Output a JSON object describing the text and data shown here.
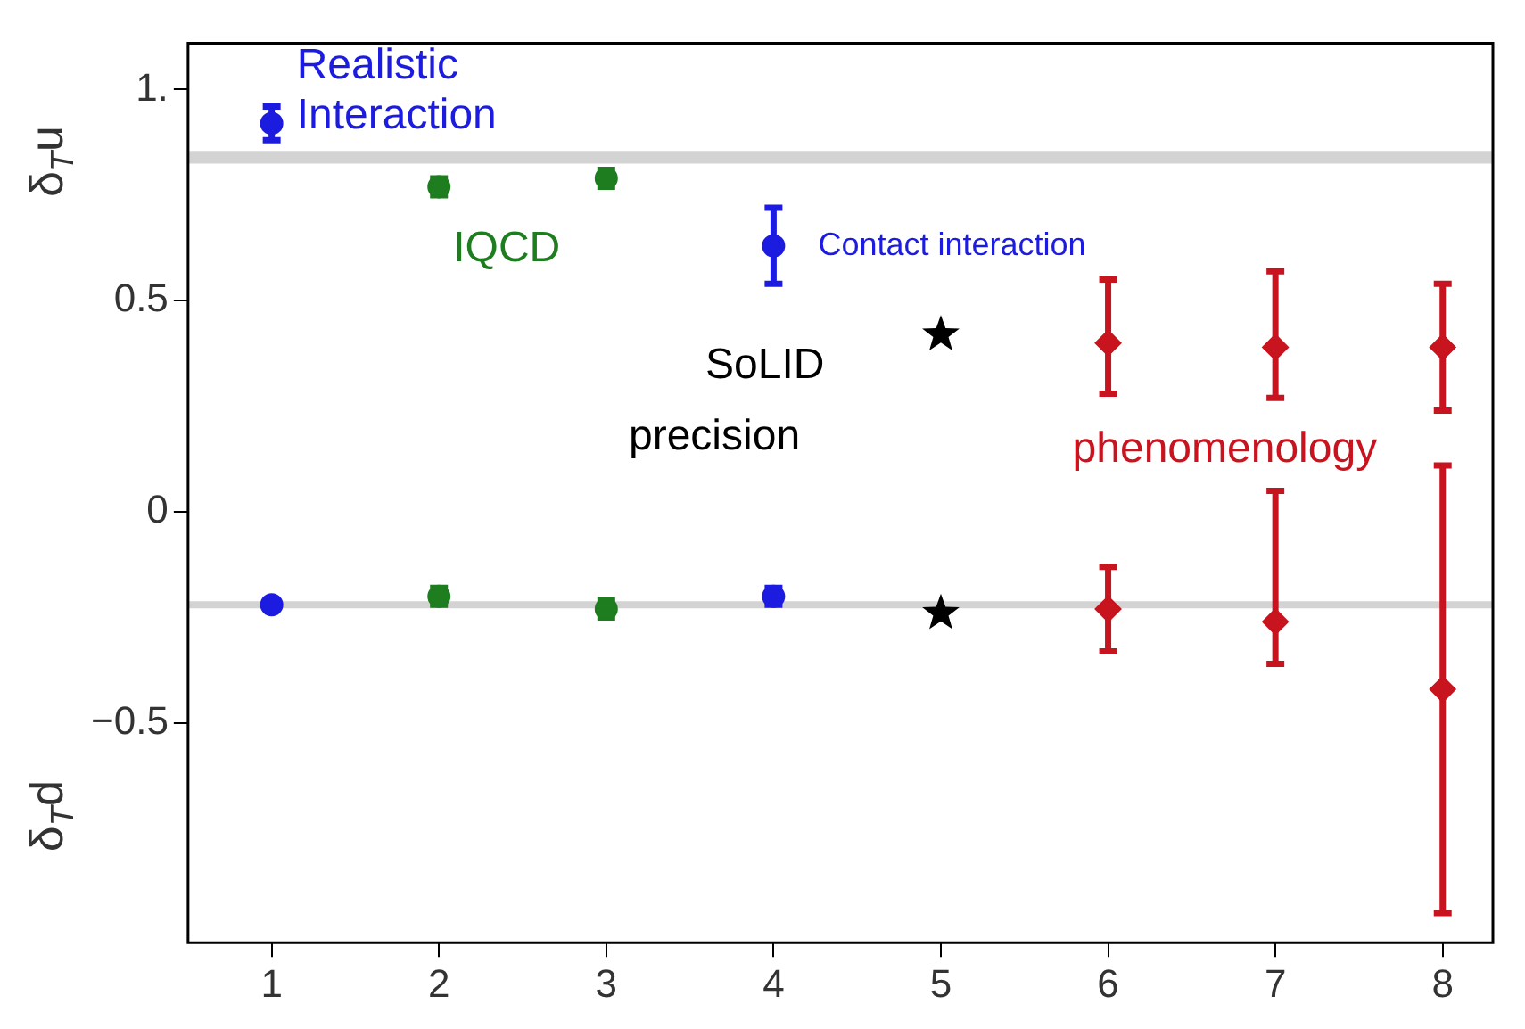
{
  "chart_data": {
    "type": "scatter",
    "ylabel": "δ$_{T}$u",
    "annotations": [
      "δ$_{T}$d"
    ],
    "xlim": [
      0.5,
      8.3
    ],
    "xticks": [
      1,
      2,
      3,
      4,
      5,
      6,
      7,
      8
    ],
    "ylim": [
      -1.02,
      1.11
    ],
    "yticks": [
      {
        "value": -0.5,
        "label": "−0.5"
      },
      0,
      0.5,
      {
        "value": 1,
        "label": "1."
      }
    ],
    "grid": false,
    "legend": false,
    "bands": [
      {
        "axis": "y",
        "from": 0.825,
        "to": 0.855,
        "color": "#d3d3d3"
      }
    ],
    "ref_lines": [
      {
        "axis": "y",
        "value": -0.22,
        "color": "#d3d3d3"
      }
    ],
    "series": [
      {
        "name": "Realistic Interaction",
        "color": "#1c1ce0",
        "marker": "circle",
        "x": [
          1,
          1
        ],
        "values": [
          0.92,
          -0.22
        ],
        "errors": [
          [
            0.88,
            0.96
          ],
          null
        ]
      },
      {
        "name": "IQCD",
        "color": "#1e7d1e",
        "marker": "circle",
        "x": [
          2,
          2,
          3,
          3
        ],
        "values": [
          0.77,
          -0.2,
          0.79,
          -0.23
        ],
        "errors": [
          0.02,
          0.02,
          0.02,
          0.02
        ]
      },
      {
        "name": "Contact interaction",
        "color": "#1c1ce0",
        "marker": "circle",
        "x": [
          4,
          4
        ],
        "values": [
          0.63,
          -0.2
        ],
        "errors": [
          [
            0.54,
            0.72
          ],
          0.02
        ]
      },
      {
        "name": "SoLID precision",
        "color": "#000000",
        "marker": "star",
        "x": [
          5,
          5
        ],
        "values": [
          0.42,
          -0.24
        ],
        "errors": [
          null,
          null
        ]
      },
      {
        "name": "phenomenology",
        "color": "#c8141e",
        "marker": "diamond",
        "x": [
          6,
          6,
          7,
          7,
          8,
          8
        ],
        "values": [
          0.4,
          -0.23,
          0.39,
          -0.26,
          0.39,
          -0.42
        ],
        "errors": [
          [
            0.28,
            0.55
          ],
          [
            -0.33,
            -0.13
          ],
          [
            0.27,
            0.57
          ],
          [
            -0.36,
            0.05
          ],
          [
            0.24,
            0.54
          ],
          [
            -0.95,
            0.11
          ]
        ]
      }
    ]
  }
}
